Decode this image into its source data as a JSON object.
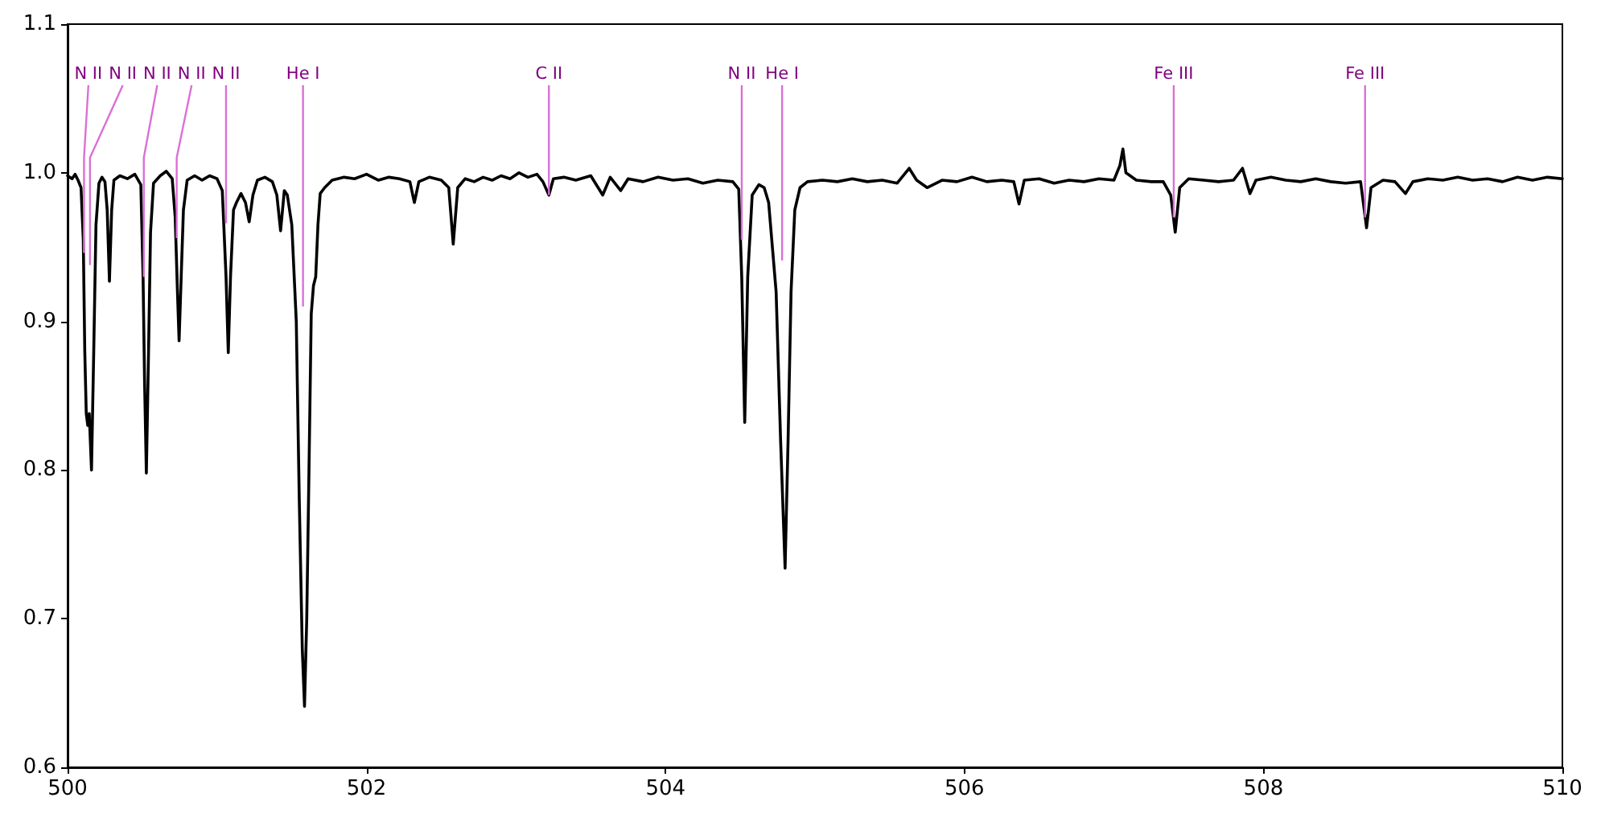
{
  "chart_data": {
    "type": "line",
    "color": "#000000",
    "x": [
      500.0,
      500.03,
      500.05,
      500.07,
      500.09,
      500.105,
      500.115,
      500.125,
      500.135,
      500.145,
      500.16,
      500.175,
      500.19,
      500.21,
      500.23,
      500.25,
      500.265,
      500.28,
      500.295,
      500.31,
      500.35,
      500.4,
      500.45,
      500.49,
      500.505,
      500.515,
      500.527,
      500.54,
      500.555,
      500.575,
      500.62,
      500.66,
      500.7,
      500.72,
      500.735,
      500.746,
      500.76,
      500.775,
      500.8,
      500.85,
      500.9,
      500.95,
      501.0,
      501.035,
      501.06,
      501.075,
      501.09,
      501.11,
      501.13,
      501.16,
      501.19,
      501.215,
      501.24,
      501.27,
      501.32,
      501.37,
      501.4,
      501.425,
      501.45,
      501.47,
      501.5,
      501.53,
      501.55,
      501.57,
      501.585,
      501.6,
      501.615,
      501.63,
      501.645,
      501.66,
      501.675,
      501.69,
      501.72,
      501.77,
      501.85,
      501.92,
      502.0,
      502.08,
      502.15,
      502.22,
      502.29,
      502.32,
      502.35,
      502.42,
      502.5,
      502.55,
      502.58,
      502.61,
      502.66,
      502.72,
      502.78,
      502.84,
      502.9,
      502.96,
      503.02,
      503.08,
      503.14,
      503.18,
      503.22,
      503.25,
      503.32,
      503.4,
      503.5,
      503.58,
      503.63,
      503.7,
      503.75,
      503.85,
      503.95,
      504.05,
      504.15,
      504.25,
      504.35,
      504.45,
      504.49,
      504.51,
      504.53,
      504.55,
      504.58,
      504.625,
      504.66,
      504.69,
      504.74,
      504.77,
      504.8,
      504.82,
      504.84,
      504.865,
      504.9,
      504.95,
      505.05,
      505.15,
      505.25,
      505.35,
      505.45,
      505.55,
      505.63,
      505.68,
      505.75,
      505.85,
      505.95,
      506.05,
      506.15,
      506.25,
      506.33,
      506.365,
      506.4,
      506.5,
      506.6,
      506.7,
      506.8,
      506.9,
      507.0,
      507.04,
      507.06,
      507.08,
      507.15,
      507.25,
      507.33,
      507.38,
      507.41,
      507.44,
      507.5,
      507.6,
      507.7,
      507.8,
      507.86,
      507.91,
      507.95,
      508.05,
      508.15,
      508.25,
      508.35,
      508.45,
      508.55,
      508.65,
      508.69,
      508.72,
      508.8,
      508.88,
      508.95,
      509.0,
      509.1,
      509.2,
      509.3,
      509.4,
      509.5,
      509.6,
      509.7,
      509.8,
      509.9,
      510.0
    ],
    "values": [
      0.998,
      0.996,
      0.999,
      0.995,
      0.99,
      0.955,
      0.88,
      0.838,
      0.83,
      0.838,
      0.8,
      0.88,
      0.965,
      0.993,
      0.997,
      0.994,
      0.975,
      0.927,
      0.975,
      0.995,
      0.998,
      0.996,
      0.999,
      0.992,
      0.93,
      0.86,
      0.798,
      0.87,
      0.96,
      0.993,
      0.998,
      1.001,
      0.996,
      0.97,
      0.92,
      0.887,
      0.93,
      0.975,
      0.995,
      0.998,
      0.995,
      0.998,
      0.996,
      0.988,
      0.93,
      0.879,
      0.93,
      0.975,
      0.98,
      0.986,
      0.98,
      0.967,
      0.985,
      0.995,
      0.997,
      0.994,
      0.985,
      0.961,
      0.988,
      0.985,
      0.965,
      0.9,
      0.78,
      0.68,
      0.641,
      0.7,
      0.8,
      0.905,
      0.924,
      0.93,
      0.965,
      0.986,
      0.99,
      0.995,
      0.997,
      0.996,
      0.999,
      0.995,
      0.997,
      0.996,
      0.994,
      0.98,
      0.994,
      0.997,
      0.995,
      0.99,
      0.952,
      0.99,
      0.996,
      0.994,
      0.997,
      0.995,
      0.998,
      0.996,
      1.0,
      0.997,
      0.999,
      0.994,
      0.985,
      0.996,
      0.997,
      0.995,
      0.998,
      0.985,
      0.997,
      0.988,
      0.996,
      0.994,
      0.997,
      0.995,
      0.996,
      0.993,
      0.995,
      0.994,
      0.989,
      0.93,
      0.832,
      0.93,
      0.985,
      0.992,
      0.99,
      0.98,
      0.92,
      0.82,
      0.734,
      0.82,
      0.92,
      0.975,
      0.99,
      0.994,
      0.995,
      0.994,
      0.996,
      0.994,
      0.995,
      0.993,
      1.003,
      0.995,
      0.99,
      0.995,
      0.994,
      0.997,
      0.994,
      0.995,
      0.994,
      0.979,
      0.995,
      0.996,
      0.993,
      0.995,
      0.994,
      0.996,
      0.995,
      1.005,
      1.016,
      1.0,
      0.995,
      0.994,
      0.994,
      0.985,
      0.96,
      0.99,
      0.996,
      0.995,
      0.994,
      0.995,
      1.003,
      0.986,
      0.995,
      0.997,
      0.995,
      0.994,
      0.996,
      0.994,
      0.993,
      0.994,
      0.963,
      0.99,
      0.995,
      0.994,
      0.986,
      0.994,
      0.996,
      0.995,
      0.997,
      0.995,
      0.996,
      0.994,
      0.997,
      0.995,
      0.997,
      0.996
    ],
    "xlim": [
      500,
      510
    ],
    "xticks": [
      500,
      502,
      504,
      506,
      508,
      510
    ],
    "ylim": [
      0.6,
      1.1
    ],
    "yticks": [
      0.6,
      0.7,
      0.8,
      0.9,
      {
        "value": 1.0,
        "label": "1.0"
      },
      1.1
    ],
    "annotations": [
      {
        "text": "N II",
        "x": 500.11,
        "y": 0.946
      },
      {
        "text": "N II",
        "x": 500.15,
        "y": 0.938
      },
      {
        "text": "N II",
        "x": 500.51,
        "y": 0.93
      },
      {
        "text": "N II",
        "x": 500.73,
        "y": 0.956
      },
      {
        "text": "N II",
        "x": 501.06,
        "y": 0.966
      },
      {
        "text": "He I",
        "x": 501.575,
        "y": 0.91
      },
      {
        "text": "C II",
        "x": 503.22,
        "y": 0.985
      },
      {
        "text": "N II",
        "x": 504.51,
        "y": 0.955
      },
      {
        "text": "He I",
        "x": 504.78,
        "y": 0.941
      },
      {
        "text": "Fe III",
        "x": 507.4,
        "y": 0.97
      },
      {
        "text": "Fe III",
        "x": 508.68,
        "y": 0.97
      }
    ]
  }
}
